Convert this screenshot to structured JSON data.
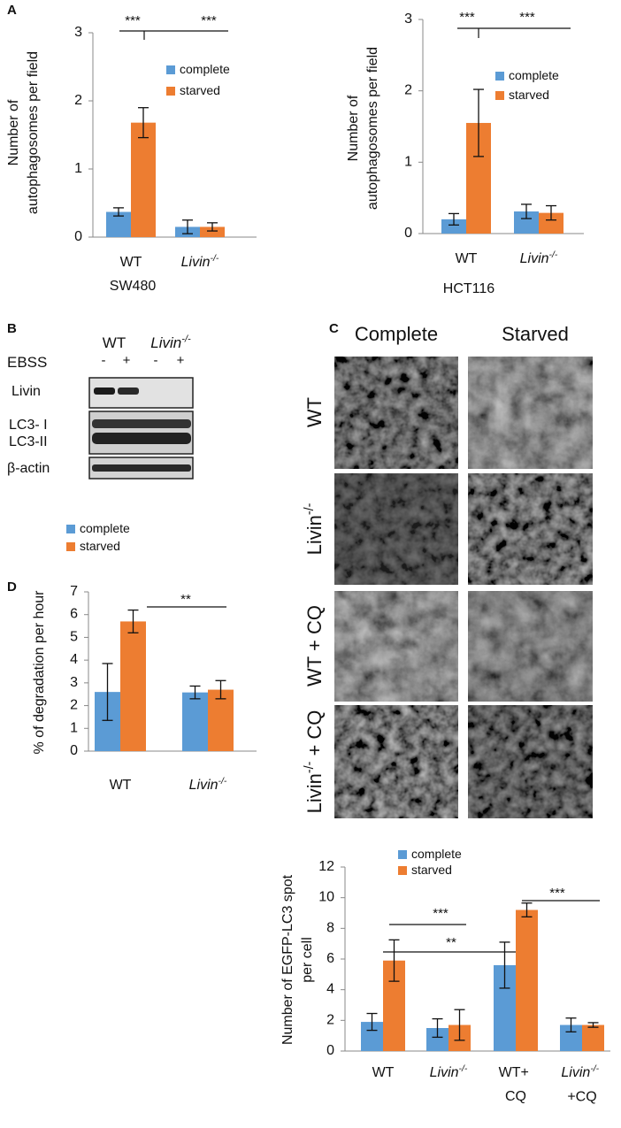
{
  "figure": {
    "panel_labels": [
      "A",
      "B",
      "C",
      "D"
    ],
    "blot": {
      "groups": [
        "WT",
        "Livin-/-"
      ],
      "treatment": "EBSS",
      "lanes": [
        "-",
        "+",
        "-",
        "+"
      ],
      "rows": [
        "Livin",
        "LC3- I",
        "LC3-II",
        "β-actin"
      ]
    },
    "microscopy": {
      "columns": [
        "Complete",
        "Starved"
      ],
      "rows": [
        "WT",
        "Livin-/-",
        "WT + CQ",
        "Livin-/- + CQ"
      ]
    }
  },
  "chart_data": [
    {
      "type": "bar",
      "xlabel": "SW480",
      "ylabel": [
        "Number of",
        "autophagosomes per field"
      ],
      "categories": [
        "WT",
        "Livin-/-"
      ],
      "series": [
        {
          "name": "complete",
          "color": "#5b9bd5",
          "values": [
            0.37,
            0.15
          ],
          "errors": [
            0.06,
            0.1
          ]
        },
        {
          "name": "starved",
          "color": "#ed7d31",
          "values": [
            1.68,
            0.15
          ],
          "errors": [
            0.22,
            0.06
          ]
        }
      ],
      "ylim": [
        0,
        3
      ],
      "yticks": [
        0,
        1,
        2,
        3
      ],
      "annotations": [
        "***",
        "***"
      ]
    },
    {
      "type": "bar",
      "xlabel": "HCT116",
      "ylabel": [
        "Number of",
        "autophagosomes  per field"
      ],
      "categories": [
        "WT",
        "Livin-/-"
      ],
      "series": [
        {
          "name": "complete",
          "color": "#5b9bd5",
          "values": [
            0.2,
            0.31
          ],
          "errors": [
            0.08,
            0.1
          ]
        },
        {
          "name": "starved",
          "color": "#ed7d31",
          "values": [
            1.55,
            0.29
          ],
          "errors": [
            0.47,
            0.1
          ]
        }
      ],
      "ylim": [
        0,
        3
      ],
      "yticks": [
        0,
        1,
        2,
        3
      ],
      "annotations": [
        "***",
        "***"
      ]
    },
    {
      "type": "bar",
      "ylabel": [
        "% of degradation per hour"
      ],
      "categories": [
        "WT",
        "Livin-/-"
      ],
      "series": [
        {
          "name": "complete",
          "color": "#5b9bd5",
          "values": [
            2.6,
            2.58
          ],
          "errors": [
            1.25,
            0.28
          ]
        },
        {
          "name": "starved",
          "color": "#ed7d31",
          "values": [
            5.7,
            2.7
          ],
          "errors": [
            0.5,
            0.4
          ]
        }
      ],
      "ylim": [
        0,
        7
      ],
      "yticks": [
        0,
        1,
        2,
        3,
        4,
        5,
        6,
        7
      ],
      "annotations": [
        "**"
      ]
    },
    {
      "type": "bar",
      "ylabel": [
        "Number of EGFP-LC3 spot",
        "per cell"
      ],
      "categories": [
        "WT",
        "Livin-/-",
        "WT+ CQ",
        "Livin-/- +CQ"
      ],
      "series": [
        {
          "name": "complete",
          "color": "#5b9bd5",
          "values": [
            1.9,
            1.5,
            5.6,
            1.7
          ],
          "errors": [
            0.55,
            0.6,
            1.5,
            0.45
          ]
        },
        {
          "name": "starved",
          "color": "#ed7d31",
          "values": [
            5.9,
            1.7,
            9.2,
            1.7
          ],
          "errors": [
            1.35,
            1.0,
            0.45,
            0.15
          ]
        }
      ],
      "ylim": [
        0,
        12
      ],
      "yticks": [
        0,
        2,
        4,
        6,
        8,
        10,
        12
      ],
      "annotations": [
        "***",
        "**",
        "***"
      ]
    }
  ]
}
